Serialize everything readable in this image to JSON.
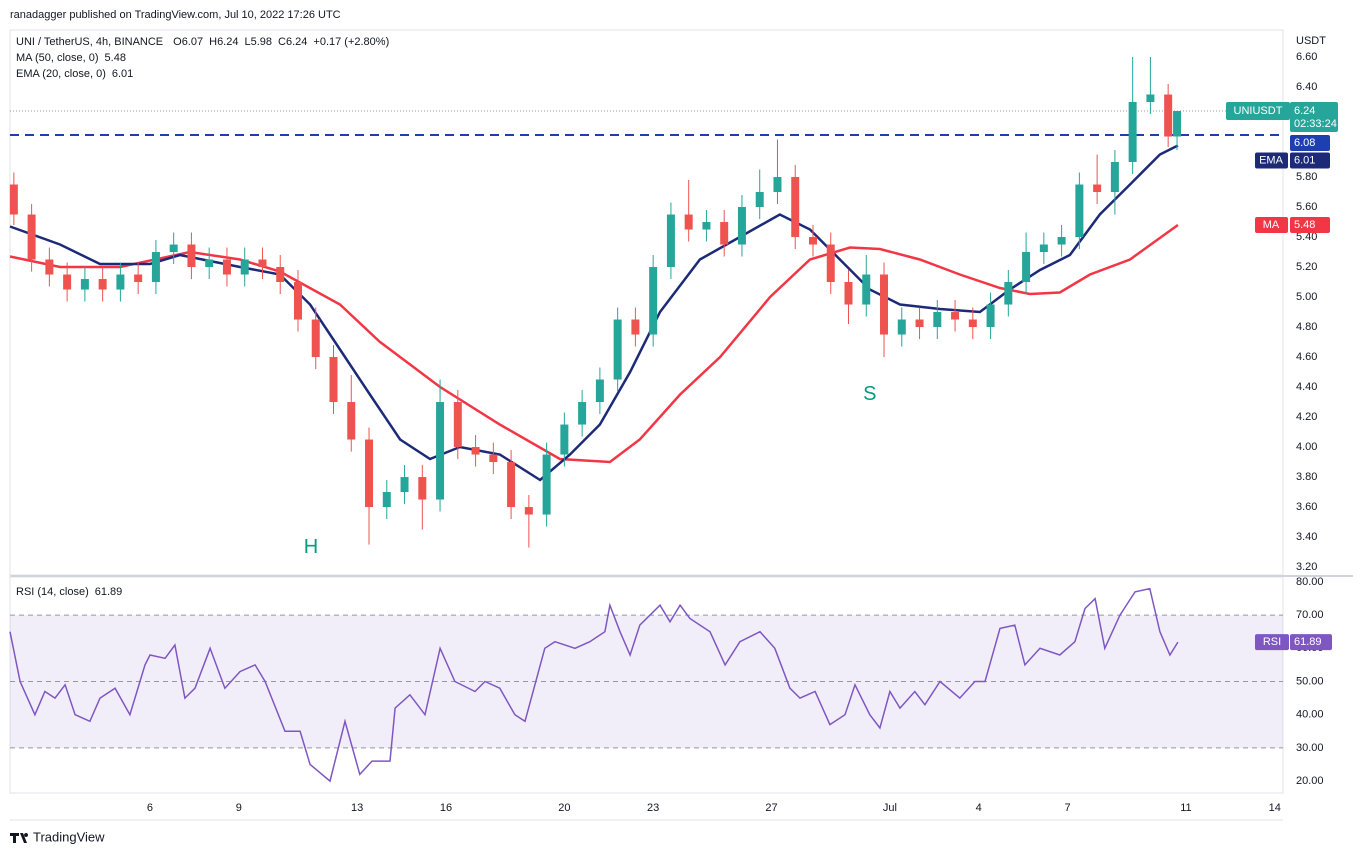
{
  "chart_data": {
    "type": "candlestick",
    "header": "ranadagger published on TradingView.com, Jul 10, 2022 17:26 UTC",
    "title": "UNI / TetherUS, 4h, BINANCE",
    "ohlc_legend": [
      {
        "label": "O",
        "value": 6.07
      },
      {
        "label": "H",
        "value": 6.24
      },
      {
        "label": "L",
        "value": 5.98
      },
      {
        "label": "C",
        "value": 6.24
      }
    ],
    "change": "+0.17 (+2.80%)",
    "axis_unit": "USDT",
    "symbol_label": "UNIUSDT",
    "last_price": 6.24,
    "countdown": "02:33:24",
    "level": 6.08,
    "level_color": "#1e3fb0",
    "up_color": "#26a69a",
    "down_color": "#ef5350",
    "brand": "TradingView",
    "xlim": [
      1.27,
      44.28
    ],
    "xticks": [
      6,
      9,
      13,
      16,
      20,
      23,
      27,
      {
        "value": 31,
        "label": "Jul"
      },
      {
        "value": 34,
        "label": "4"
      },
      {
        "value": 37,
        "label": "7"
      },
      {
        "value": 41,
        "label": "11"
      },
      {
        "value": 44,
        "label": "14"
      }
    ],
    "ylim": [
      3.147,
      6.78
    ],
    "yticks": [
      {
        "value": 6.6,
        "label": "6.60"
      },
      {
        "value": 6.4,
        "label": "6.40"
      },
      {
        "value": 6.2,
        "label": "6.20"
      },
      {
        "value": 6.0,
        "label": "6.00"
      },
      {
        "value": 5.8,
        "label": "5.80"
      },
      {
        "value": 5.6,
        "label": "5.60"
      },
      {
        "value": 5.4,
        "label": "5.40"
      },
      {
        "value": 5.2,
        "label": "5.20"
      },
      {
        "value": 5.0,
        "label": "5.00"
      },
      {
        "value": 4.8,
        "label": "4.80"
      },
      {
        "value": 4.6,
        "label": "4.60"
      },
      {
        "value": 4.4,
        "label": "4.40"
      },
      {
        "value": 4.2,
        "label": "4.20"
      },
      {
        "value": 4.0,
        "label": "4.00"
      },
      {
        "value": 3.8,
        "label": "3.80"
      },
      {
        "value": 3.6,
        "label": "3.60"
      },
      {
        "value": 3.4,
        "label": "3.40"
      },
      {
        "value": 3.2,
        "label": "3.20"
      }
    ],
    "grid": false,
    "candles": {
      "x": [
        1.4,
        2.0,
        2.6,
        3.2,
        3.8,
        4.4,
        5.0,
        5.6,
        6.2,
        6.8,
        7.4,
        8.0,
        8.6,
        9.2,
        9.8,
        10.4,
        11.0,
        11.6,
        12.2,
        12.8,
        13.4,
        14.0,
        14.6,
        15.2,
        15.8,
        16.4,
        17.0,
        17.6,
        18.2,
        18.8,
        19.4,
        20.0,
        20.6,
        21.2,
        21.8,
        22.4,
        23.0,
        23.6,
        24.2,
        24.8,
        25.4,
        26.0,
        26.6,
        27.2,
        27.8,
        28.4,
        29.0,
        29.6,
        30.2,
        30.8,
        31.4,
        32.0,
        32.6,
        33.2,
        33.8,
        34.4,
        35.0,
        35.6,
        36.2,
        36.8,
        37.4,
        38.0,
        38.6,
        39.2,
        39.8,
        40.4,
        40.7
      ],
      "open": [
        5.75,
        5.55,
        5.25,
        5.15,
        5.05,
        5.12,
        5.05,
        5.15,
        5.1,
        5.3,
        5.35,
        5.2,
        5.25,
        5.15,
        5.25,
        5.2,
        5.1,
        4.85,
        4.6,
        4.3,
        4.05,
        3.6,
        3.7,
        3.8,
        3.65,
        4.3,
        4.0,
        3.95,
        3.9,
        3.6,
        3.55,
        3.95,
        4.15,
        4.3,
        4.45,
        4.85,
        4.75,
        5.2,
        5.55,
        5.45,
        5.5,
        5.35,
        5.6,
        5.7,
        5.8,
        5.4,
        5.35,
        5.1,
        4.95,
        5.15,
        4.75,
        4.85,
        4.8,
        4.9,
        4.85,
        4.8,
        4.95,
        5.1,
        5.3,
        5.35,
        5.4,
        5.75,
        5.7,
        5.9,
        6.3,
        6.35,
        6.07
      ],
      "high": [
        5.83,
        5.62,
        5.33,
        5.23,
        5.2,
        5.2,
        5.23,
        5.23,
        5.38,
        5.43,
        5.43,
        5.33,
        5.33,
        5.33,
        5.33,
        5.28,
        5.18,
        4.93,
        4.68,
        4.48,
        4.13,
        3.78,
        3.88,
        3.88,
        4.45,
        4.38,
        4.08,
        4.03,
        3.98,
        3.68,
        4.03,
        4.23,
        4.38,
        4.53,
        4.93,
        4.93,
        5.28,
        5.63,
        5.78,
        5.58,
        5.58,
        5.68,
        5.85,
        6.05,
        5.88,
        5.48,
        5.43,
        5.18,
        5.28,
        5.23,
        4.93,
        4.93,
        4.98,
        4.98,
        4.93,
        5.03,
        5.18,
        5.43,
        5.43,
        5.48,
        5.83,
        5.95,
        5.98,
        6.6,
        6.6,
        6.42,
        6.24
      ],
      "low": [
        5.48,
        5.17,
        5.07,
        4.97,
        4.97,
        4.97,
        4.97,
        5.02,
        5.02,
        5.22,
        5.12,
        5.12,
        5.07,
        5.07,
        5.12,
        5.02,
        4.77,
        4.52,
        4.22,
        3.97,
        3.35,
        3.52,
        3.62,
        3.45,
        3.57,
        3.92,
        3.87,
        3.82,
        3.52,
        3.33,
        3.47,
        3.87,
        4.07,
        4.22,
        4.37,
        4.67,
        4.67,
        5.12,
        5.37,
        5.37,
        5.27,
        5.27,
        5.52,
        5.62,
        5.32,
        5.27,
        5.02,
        4.82,
        4.87,
        4.6,
        4.67,
        4.72,
        4.72,
        4.77,
        4.72,
        4.72,
        4.87,
        5.02,
        5.22,
        5.27,
        5.32,
        5.62,
        5.55,
        5.82,
        6.22,
        6.0,
        5.98
      ],
      "close": [
        5.55,
        5.25,
        5.15,
        5.05,
        5.12,
        5.05,
        5.15,
        5.1,
        5.3,
        5.35,
        5.2,
        5.25,
        5.15,
        5.25,
        5.2,
        5.1,
        4.85,
        4.6,
        4.3,
        4.05,
        3.6,
        3.7,
        3.8,
        3.65,
        4.3,
        4.0,
        3.95,
        3.9,
        3.6,
        3.55,
        3.95,
        4.15,
        4.3,
        4.45,
        4.85,
        4.75,
        5.2,
        5.55,
        5.45,
        5.5,
        5.35,
        5.6,
        5.7,
        5.8,
        5.4,
        5.35,
        5.1,
        4.95,
        5.15,
        4.75,
        4.85,
        4.8,
        4.9,
        4.85,
        4.8,
        4.95,
        5.1,
        5.3,
        5.35,
        5.4,
        5.75,
        5.7,
        5.9,
        6.3,
        6.35,
        6.07,
        6.24
      ]
    },
    "series": [
      {
        "name": "MA (50, close, 0)",
        "label": "MA",
        "last": 5.48,
        "color": "#f23645",
        "x": [
          1.27,
          2.96,
          4.99,
          7.35,
          9.04,
          10.39,
          12.42,
          13.77,
          15.8,
          17.82,
          19.85,
          21.54,
          22.55,
          23.91,
          25.26,
          26.95,
          28.3,
          29.65,
          30.66,
          32.01,
          33.36,
          34.72,
          35.73,
          36.74,
          37.76,
          39.11,
          40.73
        ],
        "values": [
          5.27,
          5.2,
          5.2,
          5.3,
          5.25,
          5.17,
          4.95,
          4.7,
          4.4,
          4.15,
          3.92,
          3.9,
          4.05,
          4.35,
          4.6,
          5.0,
          5.25,
          5.33,
          5.32,
          5.25,
          5.15,
          5.06,
          5.02,
          5.03,
          5.15,
          5.25,
          5.48
        ]
      },
      {
        "name": "EMA (20, close, 0)",
        "label": "EMA",
        "last": 6.01,
        "color": "#1c2a78",
        "x": [
          1.27,
          2.96,
          4.31,
          6.0,
          7.01,
          9.04,
          10.39,
          11.41,
          12.42,
          13.43,
          14.45,
          15.46,
          16.47,
          17.82,
          19.18,
          20.19,
          21.2,
          22.22,
          23.23,
          24.58,
          25.93,
          27.28,
          28.3,
          29.31,
          30.32,
          31.34,
          32.69,
          34.04,
          35.05,
          36.07,
          37.08,
          38.09,
          39.11,
          40.12,
          40.73
        ],
        "values": [
          5.47,
          5.35,
          5.22,
          5.22,
          5.28,
          5.2,
          5.15,
          4.95,
          4.65,
          4.35,
          4.05,
          3.92,
          4.0,
          3.95,
          3.78,
          3.95,
          4.15,
          4.5,
          4.9,
          5.25,
          5.4,
          5.55,
          5.45,
          5.25,
          5.05,
          4.95,
          4.92,
          4.9,
          5.05,
          5.18,
          5.28,
          5.55,
          5.75,
          5.95,
          6.01
        ]
      }
    ],
    "annotations": [
      {
        "text": "H",
        "x": 11.44,
        "y": 3.33,
        "color": "#089981"
      },
      {
        "text": "S",
        "x": 30.32,
        "y": 4.35,
        "color": "#089981"
      }
    ],
    "rsi": {
      "name": "RSI (14, close)",
      "label": "RSI",
      "last": 61.89,
      "color": "#7e57c2",
      "ylim": [
        16.4,
        81.5
      ],
      "yticks": [
        {
          "value": 80,
          "label": "80.00"
        },
        {
          "value": 70,
          "label": "70.00"
        },
        {
          "value": 60,
          "label": "60.00"
        },
        {
          "value": 50,
          "label": "50.00"
        },
        {
          "value": 40,
          "label": "40.00"
        },
        {
          "value": 30,
          "label": "30.00"
        },
        {
          "value": 20,
          "label": "20.00"
        }
      ],
      "overbought": 70,
      "midline": 50,
      "oversold": 30,
      "x": [
        1.27,
        1.61,
        2.11,
        2.45,
        2.79,
        3.13,
        3.47,
        3.97,
        4.31,
        4.82,
        5.32,
        5.83,
        6.0,
        6.51,
        6.84,
        7.18,
        7.52,
        8.03,
        8.53,
        9.04,
        9.55,
        9.89,
        10.56,
        11.07,
        11.41,
        12.08,
        12.59,
        13.09,
        13.5,
        14.11,
        14.28,
        14.78,
        15.29,
        15.8,
        16.3,
        16.98,
        17.32,
        17.82,
        18.33,
        18.67,
        19.34,
        19.68,
        20.36,
        20.86,
        21.37,
        21.54,
        21.88,
        22.22,
        22.55,
        22.89,
        23.23,
        23.57,
        23.91,
        24.24,
        24.92,
        25.43,
        25.93,
        26.61,
        27.11,
        27.62,
        27.96,
        28.47,
        28.97,
        29.48,
        29.82,
        30.32,
        30.66,
        31.0,
        31.34,
        31.84,
        32.18,
        32.69,
        33.36,
        33.87,
        34.21,
        34.72,
        35.22,
        35.56,
        36.07,
        36.74,
        37.25,
        37.59,
        37.93,
        38.26,
        38.77,
        39.28,
        39.78,
        40.12,
        40.46,
        40.73
      ],
      "values": [
        65,
        50,
        40,
        47,
        45,
        49,
        40,
        38,
        45,
        48,
        40,
        55,
        58,
        57,
        61,
        45,
        48,
        60,
        48,
        53,
        55,
        50,
        35,
        35,
        25,
        20,
        38,
        22,
        26,
        26,
        42,
        46,
        40,
        60,
        50,
        47,
        50,
        48,
        40,
        38,
        60,
        62,
        60,
        62,
        65,
        73,
        65,
        58,
        67,
        70,
        73,
        68,
        73,
        69,
        65,
        55,
        62,
        65,
        60,
        48,
        45,
        47,
        37,
        40,
        49,
        40,
        36,
        47,
        42,
        47,
        43,
        50,
        45,
        50,
        50,
        66,
        67,
        55,
        60,
        58,
        62,
        72,
        75,
        60,
        70,
        77,
        78,
        65,
        58,
        61.89
      ]
    }
  }
}
